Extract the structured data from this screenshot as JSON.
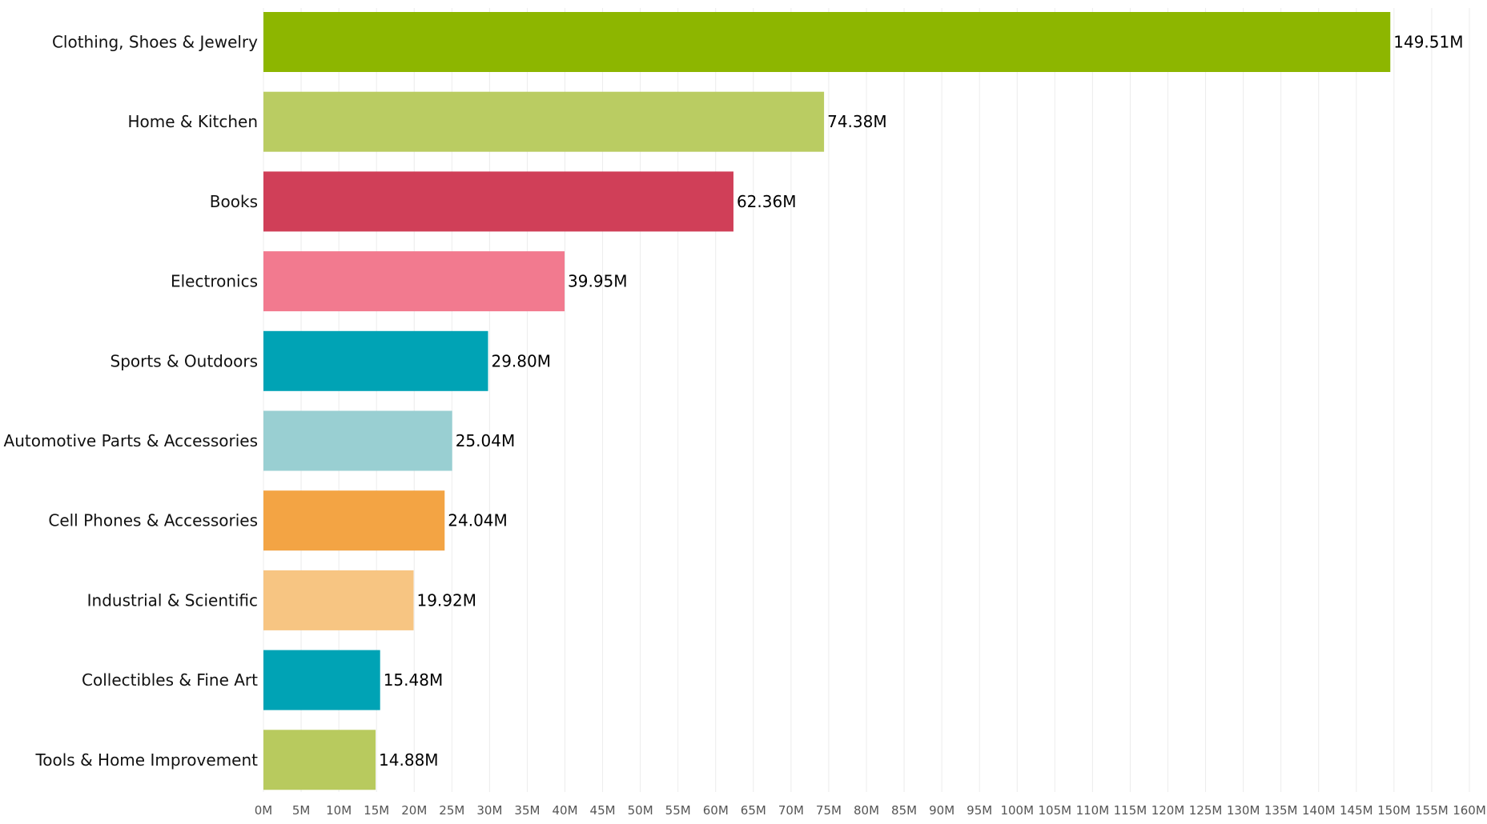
{
  "chart_data": {
    "type": "bar",
    "orientation": "horizontal",
    "title": "",
    "xlabel": "",
    "ylabel": "",
    "categories": [
      "Clothing, Shoes & Jewelry",
      "Home & Kitchen",
      "Books",
      "Electronics",
      "Sports & Outdoors",
      "Automotive Parts & Accessories",
      "Cell Phones & Accessories",
      "Industrial & Scientific",
      "Collectibles & Fine Art",
      "Tools & Home Improvement"
    ],
    "values": [
      149.51,
      74.38,
      62.36,
      39.95,
      29.8,
      25.04,
      24.04,
      19.92,
      15.48,
      14.88
    ],
    "value_labels": [
      "149.51M",
      "74.38M",
      "62.36M",
      "39.95M",
      "29.80M",
      "25.04M",
      "24.04M",
      "19.92M",
      "15.48M",
      "14.88M"
    ],
    "colors": [
      "#8db600",
      "#bacc62",
      "#d03f58",
      "#f27a8f",
      "#00a3b5",
      "#99cfd2",
      "#f3a444",
      "#f7c582",
      "#00a3b5",
      "#b8ca5e"
    ],
    "xlim": [
      0,
      160
    ],
    "xticks": [
      0,
      5,
      10,
      15,
      20,
      25,
      30,
      35,
      40,
      45,
      50,
      55,
      60,
      65,
      70,
      75,
      80,
      85,
      90,
      95,
      100,
      105,
      110,
      115,
      120,
      125,
      130,
      135,
      140,
      145,
      150,
      155,
      160
    ],
    "xtick_labels": [
      "0M",
      "5M",
      "10M",
      "15M",
      "20M",
      "25M",
      "30M",
      "35M",
      "40M",
      "45M",
      "50M",
      "55M",
      "60M",
      "65M",
      "70M",
      "75M",
      "80M",
      "85M",
      "90M",
      "95M",
      "100M",
      "105M",
      "110M",
      "115M",
      "120M",
      "125M",
      "130M",
      "135M",
      "140M",
      "145M",
      "150M",
      "155M",
      "160M"
    ],
    "grid": true,
    "legend": "none"
  }
}
